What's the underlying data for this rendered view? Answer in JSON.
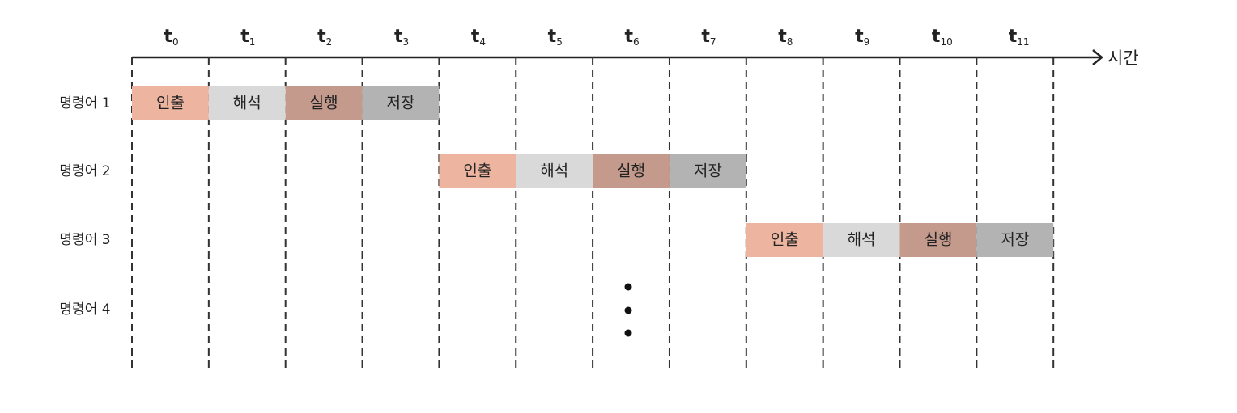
{
  "axis": {
    "label": "시간",
    "ticks": [
      {
        "main": "t",
        "sub": "0"
      },
      {
        "main": "t",
        "sub": "1"
      },
      {
        "main": "t",
        "sub": "2"
      },
      {
        "main": "t",
        "sub": "3"
      },
      {
        "main": "t",
        "sub": "4"
      },
      {
        "main": "t",
        "sub": "5"
      },
      {
        "main": "t",
        "sub": "6"
      },
      {
        "main": "t",
        "sub": "7"
      },
      {
        "main": "t",
        "sub": "8"
      },
      {
        "main": "t",
        "sub": "9"
      },
      {
        "main": "t",
        "sub": "10"
      },
      {
        "main": "t",
        "sub": "11"
      }
    ]
  },
  "rows": [
    {
      "label": "명령어 1",
      "stages": [
        "인출",
        "해석",
        "실행",
        "저장"
      ]
    },
    {
      "label": "명령어 2",
      "stages": [
        "인출",
        "해석",
        "실행",
        "저장"
      ]
    },
    {
      "label": "명령어 3",
      "stages": [
        "인출",
        "해석",
        "실행",
        "저장"
      ]
    },
    {
      "label": "명령어 4",
      "stages": []
    }
  ]
}
